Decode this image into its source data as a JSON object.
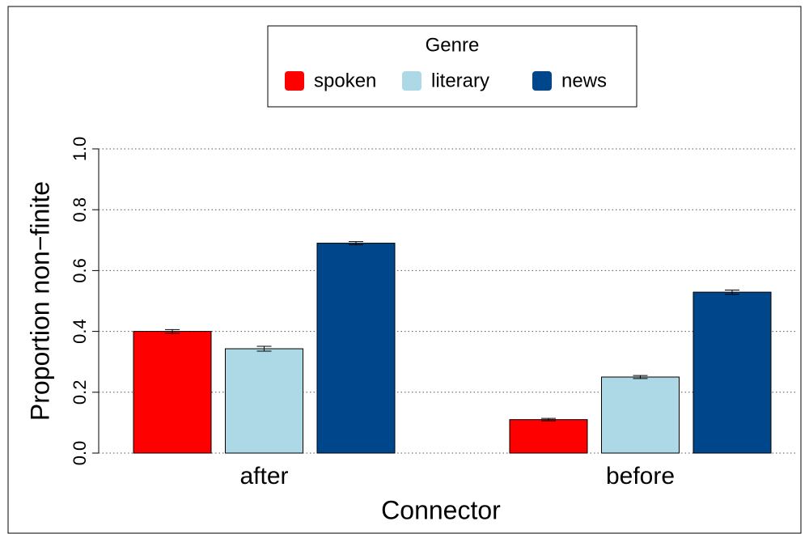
{
  "chart_data": {
    "type": "bar",
    "xlabel": "Connector",
    "ylabel": "Proportion non−finite",
    "legend_title": "Genre",
    "categories": [
      "after",
      "before"
    ],
    "series": [
      {
        "name": "spoken",
        "color": "#ff0000",
        "values": [
          0.4,
          0.11
        ],
        "errors": [
          0.006,
          0.004
        ]
      },
      {
        "name": "literary",
        "color": "#add8e6",
        "values": [
          0.343,
          0.25
        ],
        "errors": [
          0.008,
          0.005
        ]
      },
      {
        "name": "news",
        "color": "#00468b",
        "values": [
          0.69,
          0.529
        ],
        "errors": [
          0.005,
          0.007
        ]
      }
    ],
    "ylim": [
      0,
      1.0
    ],
    "yticks": [
      {
        "value": 0,
        "label": "0.0"
      },
      0.2,
      0.4,
      0.6,
      0.8,
      {
        "value": 1.0,
        "label": "1.0"
      }
    ],
    "grid": true,
    "legend": "top"
  }
}
